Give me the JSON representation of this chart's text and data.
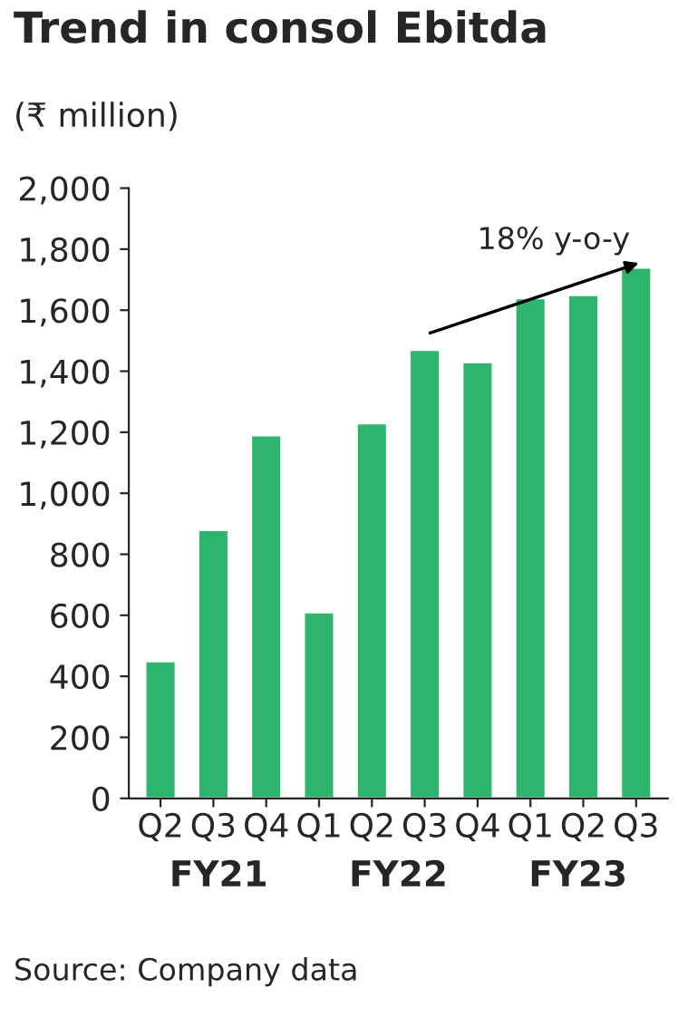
{
  "chart_data": {
    "type": "bar",
    "title": "Trend in consol Ebitda",
    "ylabel": "(₹ million)",
    "categories": [
      "Q2",
      "Q3",
      "Q4",
      "Q1",
      "Q2",
      "Q3",
      "Q4",
      "Q1",
      "Q2",
      "Q3"
    ],
    "values": [
      450,
      880,
      1190,
      610,
      1230,
      1470,
      1430,
      1640,
      1650,
      1740
    ],
    "color": "#2db56d",
    "ylim": [
      0,
      2000
    ],
    "yticks": [
      {
        "value": 0,
        "label": "0"
      },
      {
        "value": 200,
        "label": "200"
      },
      {
        "value": 400,
        "label": "400"
      },
      {
        "value": 600,
        "label": "600"
      },
      {
        "value": 800,
        "label": "800"
      },
      {
        "value": 1000,
        "label": "1,000"
      },
      {
        "value": 1200,
        "label": "1,200"
      },
      {
        "value": 1400,
        "label": "1,400"
      },
      {
        "value": 1600,
        "label": "1,600"
      },
      {
        "value": 1800,
        "label": "1,800"
      },
      {
        "value": 2000,
        "label": "2,000"
      }
    ],
    "grid": false,
    "annotations": [
      "18% y-o-y",
      "FY21",
      "FY22",
      "FY23",
      "Source: Company data"
    ]
  }
}
